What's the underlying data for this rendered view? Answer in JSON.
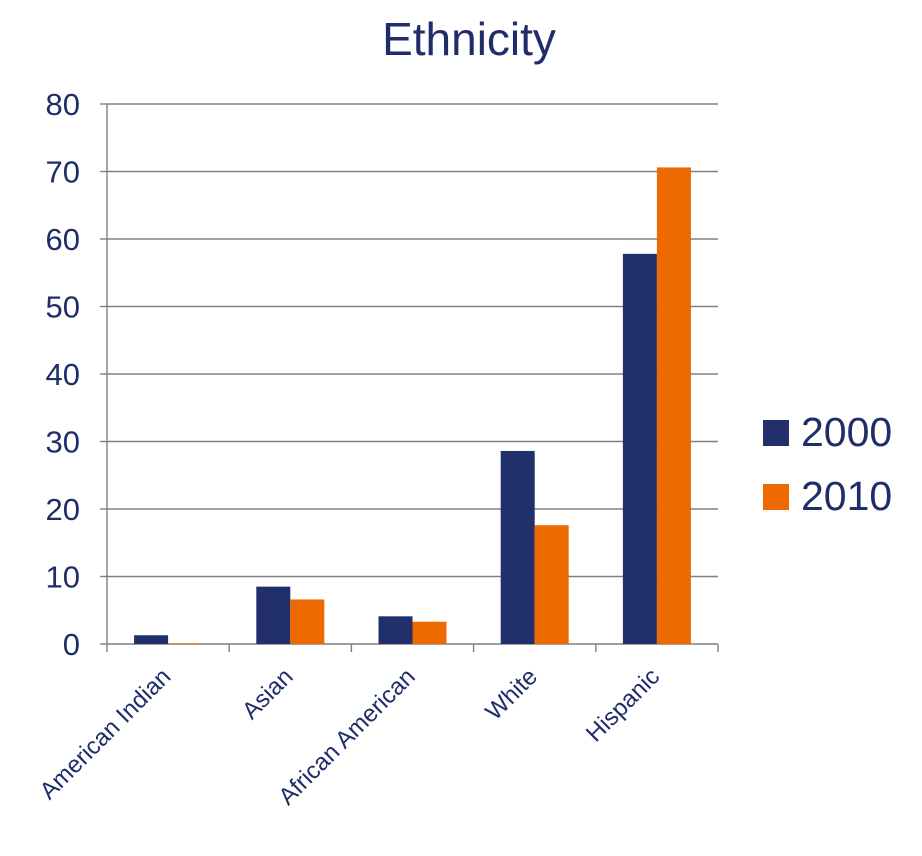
{
  "chart_data": {
    "type": "bar",
    "title": "Ethnicity",
    "xlabel": "",
    "ylabel": "",
    "categories": [
      "American Indian",
      "Asian",
      "African American",
      "White",
      "Hispanic"
    ],
    "series": [
      {
        "name": "2000",
        "values": [
          1.3,
          8.5,
          4.1,
          28.6,
          57.8
        ]
      },
      {
        "name": "2010",
        "values": [
          0.1,
          6.6,
          3.3,
          17.6,
          70.6
        ]
      }
    ],
    "ylim": [
      0,
      80
    ],
    "yticks": [
      0,
      10,
      20,
      30,
      40,
      50,
      60,
      70,
      80
    ],
    "grid": true,
    "legend_position": "right"
  },
  "colors": {
    "title": "#1f2d6b",
    "series_2000": "#212f6a",
    "series_2010": "#ec6a00",
    "axis": "#7f7f7f",
    "grid": "#808080",
    "tick_label": "#1f2d6b"
  }
}
